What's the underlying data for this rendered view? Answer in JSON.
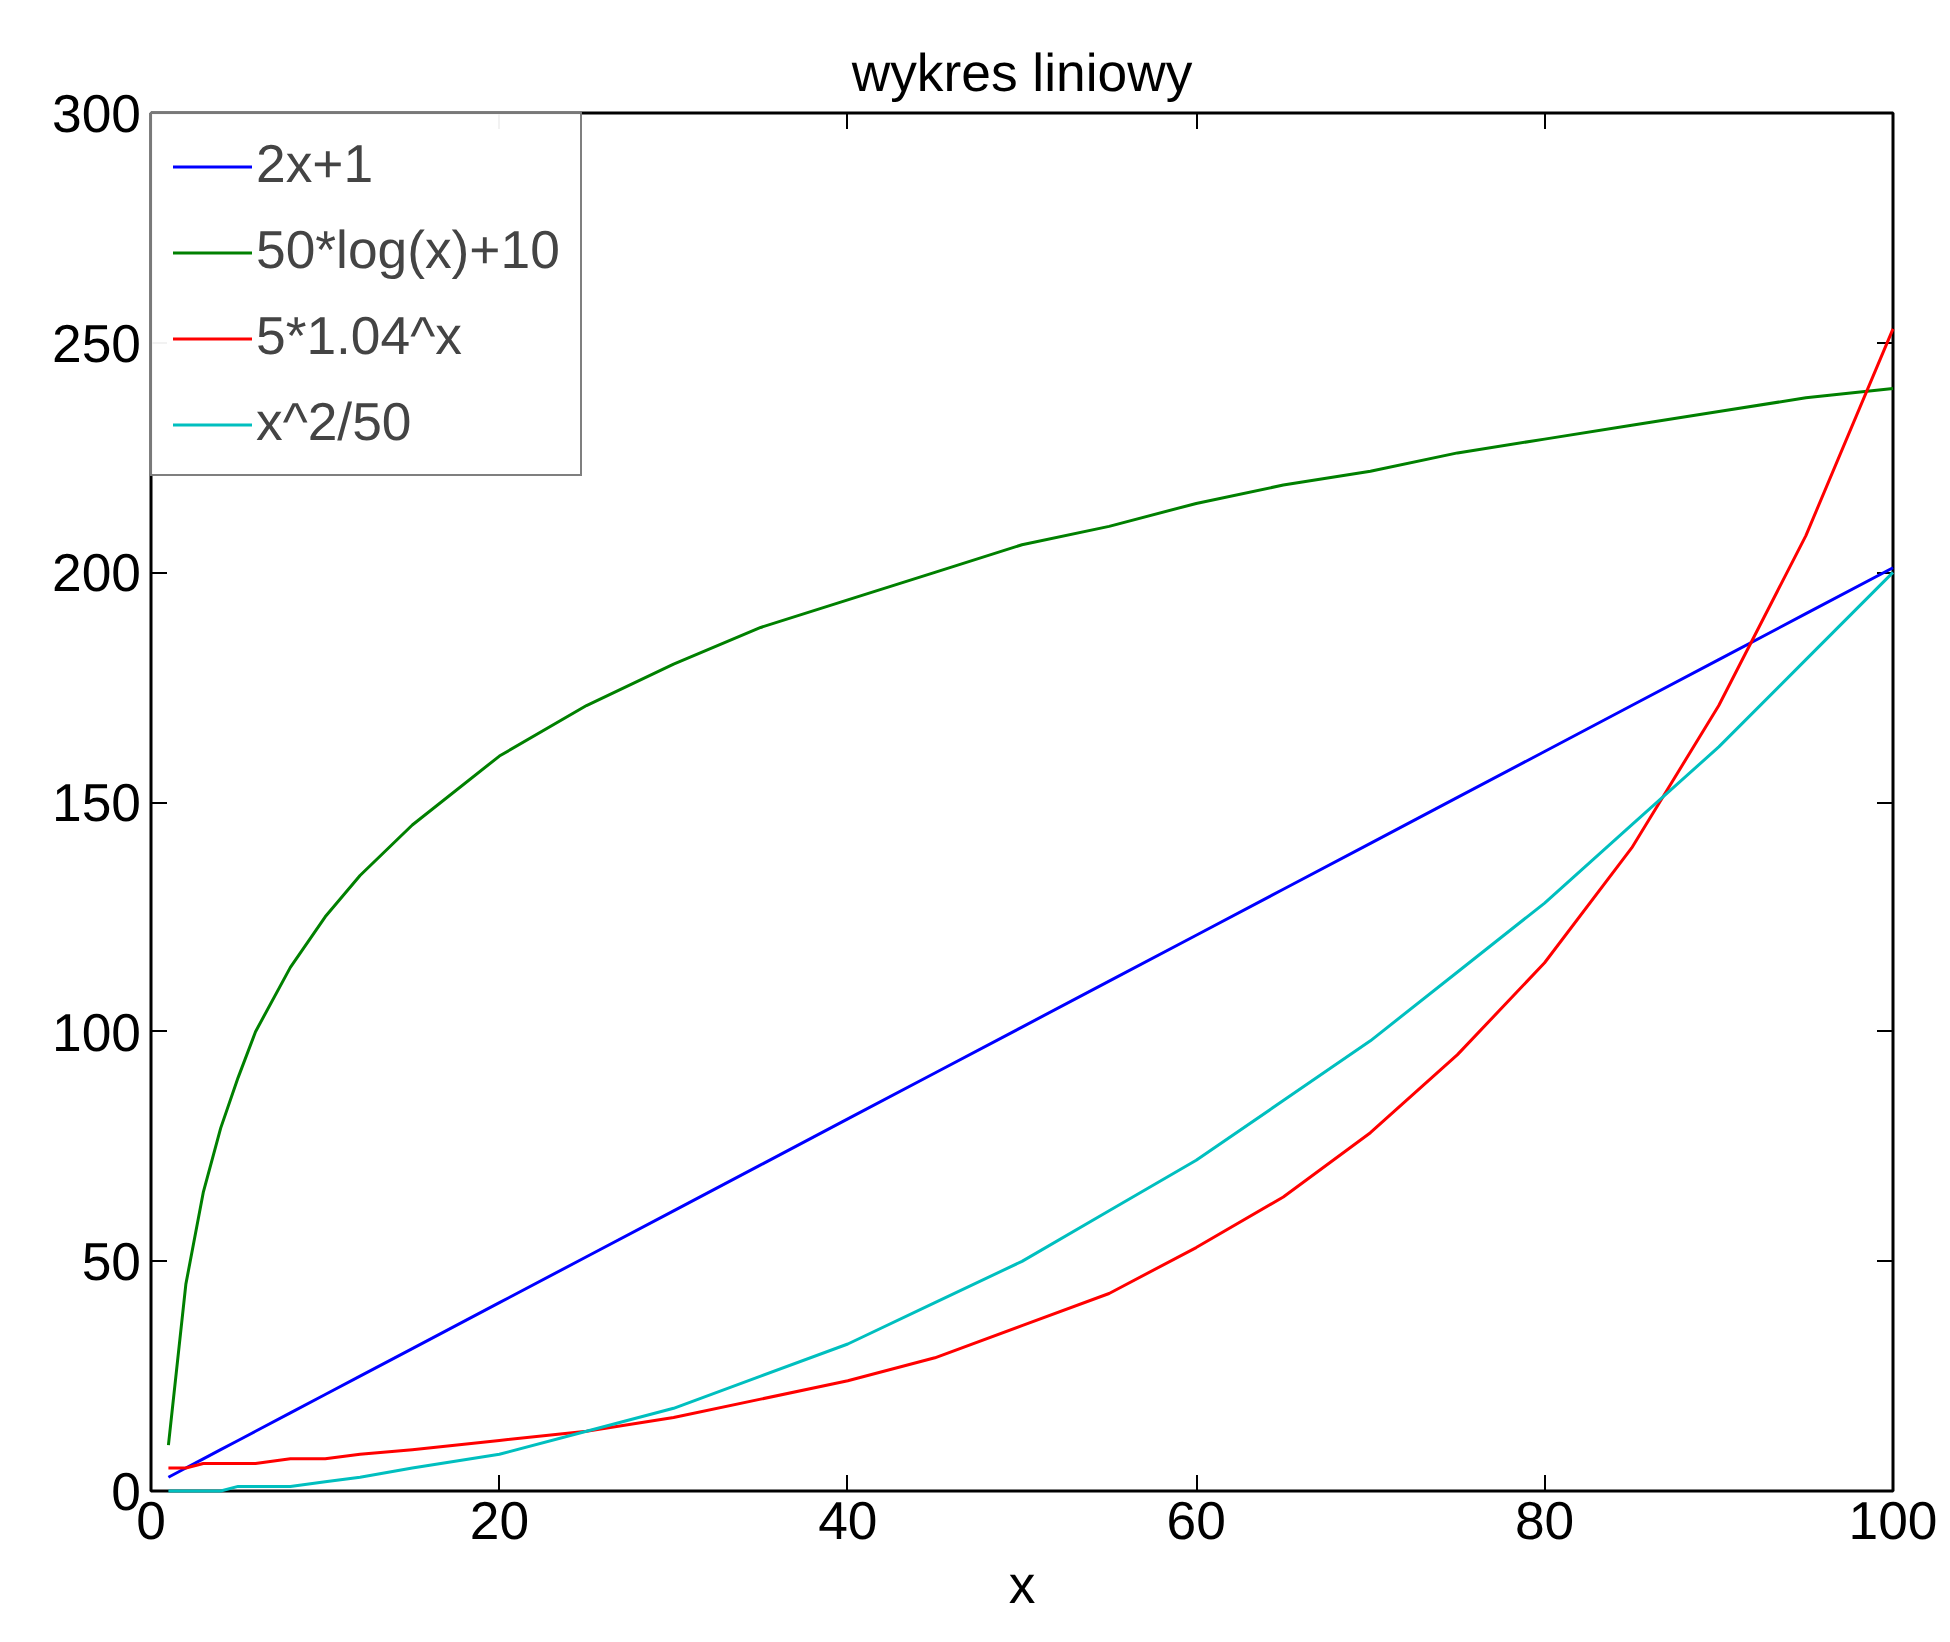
{
  "chart_data": {
    "type": "line",
    "title": "wykres liniowy",
    "xlabel": "x",
    "x": [
      1,
      2,
      3,
      4,
      5,
      6,
      8,
      10,
      12,
      15,
      20,
      25,
      30,
      35,
      40,
      45,
      50,
      55,
      60,
      65,
      70,
      75,
      80,
      85,
      90,
      95,
      100
    ],
    "series": [
      {
        "name": "2x+1",
        "color": "#0000ff",
        "values": [
          3,
          5,
          7,
          9,
          11,
          13,
          17,
          21,
          25,
          31,
          41,
          51,
          61,
          71,
          81,
          91,
          101,
          111,
          121,
          131,
          141,
          151,
          161,
          171,
          181,
          191,
          201
        ]
      },
      {
        "name": "50*log(x)+10",
        "color": "#008000",
        "values": [
          10,
          45,
          65,
          79,
          90,
          100,
          114,
          125,
          134,
          145,
          160,
          171,
          180,
          188,
          194,
          200,
          206,
          210,
          215,
          219,
          222,
          226,
          229,
          232,
          235,
          238,
          240
        ]
      },
      {
        "name": "5*1.04^x",
        "color": "#ff0000",
        "values": [
          5,
          5,
          6,
          6,
          6,
          6,
          7,
          7,
          8,
          9,
          11,
          13,
          16,
          20,
          24,
          29,
          36,
          43,
          53,
          64,
          78,
          95,
          115,
          140,
          171,
          208,
          253
        ]
      },
      {
        "name": "x^2/50",
        "color": "#00bfbf",
        "values": [
          0,
          0,
          0,
          0,
          1,
          1,
          1,
          2,
          3,
          5,
          8,
          13,
          18,
          25,
          32,
          41,
          50,
          61,
          72,
          85,
          98,
          113,
          128,
          145,
          162,
          181,
          200
        ]
      }
    ],
    "xlim": [
      0,
      100
    ],
    "ylim": [
      0,
      300
    ],
    "xticks": [
      0,
      20,
      40,
      60,
      80,
      100
    ],
    "yticks": [
      0,
      50,
      100,
      150,
      200,
      250,
      300
    ],
    "grid": false,
    "legend": "top left",
    "marker": "none",
    "line_style": "solid"
  }
}
